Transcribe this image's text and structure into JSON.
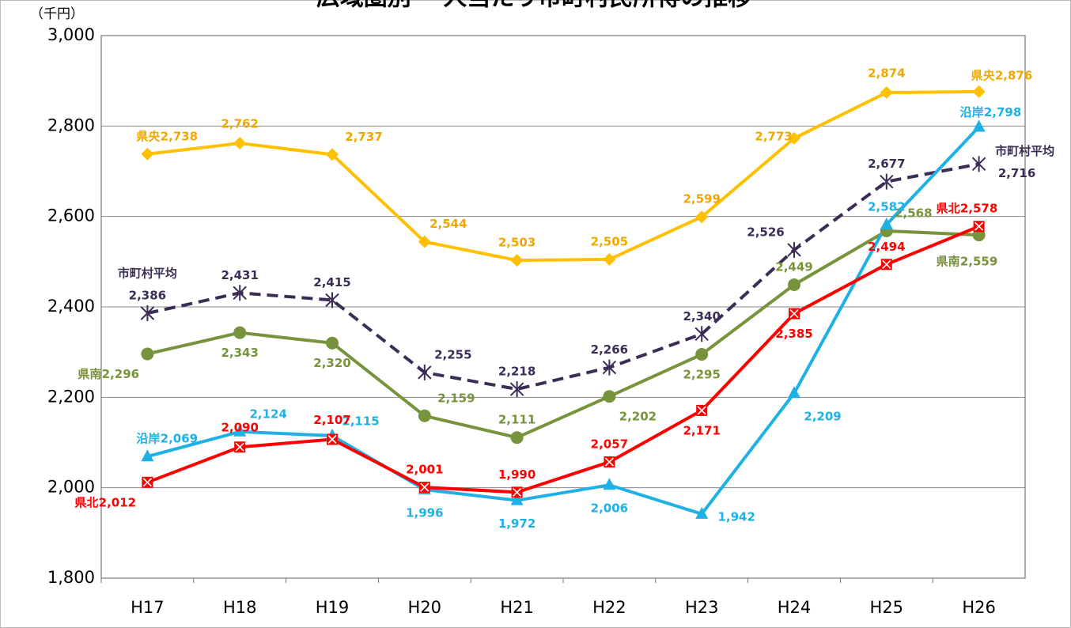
{
  "chart_data": {
    "type": "line",
    "title": "広域圏別 一人当たり市町村民所得の推移",
    "y_unit": "（千円）",
    "categories": [
      "H17",
      "H18",
      "H19",
      "H20",
      "H21",
      "H22",
      "H23",
      "H24",
      "H25",
      "H26"
    ],
    "ylim": [
      1800,
      3000
    ],
    "yticks": [
      {
        "value": 1800,
        "label": "1,800"
      },
      {
        "value": 2000,
        "label": "2,000"
      },
      {
        "value": 2200,
        "label": "2,200"
      },
      {
        "value": 2400,
        "label": "2,400"
      },
      {
        "value": 2600,
        "label": "2,600"
      },
      {
        "value": 2800,
        "label": "2,800"
      },
      {
        "value": 3000,
        "label": "3,000"
      }
    ],
    "grid": true,
    "series": [
      {
        "name": "県央",
        "color": "#ffc000",
        "marker": "diamond",
        "values": [
          2738,
          2762,
          2737,
          2544,
          2503,
          2505,
          2599,
          2773,
          2874,
          2876
        ],
        "value_labels": [
          "2,738",
          "2,762",
          "2,737",
          "2,544",
          "2,503",
          "2,505",
          "2,599",
          "2,773",
          "2,874",
          "2,876"
        ]
      },
      {
        "name": "市町村平均",
        "color": "#3b2d55",
        "marker": "star",
        "dashed": true,
        "values": [
          2386,
          2431,
          2415,
          2255,
          2218,
          2266,
          2340,
          2526,
          2677,
          2716
        ],
        "value_labels": [
          "2,386",
          "2,431",
          "2,415",
          "2,255",
          "2,218",
          "2,266",
          "2,340",
          "2,526",
          "2,677",
          "2,716"
        ]
      },
      {
        "name": "県南",
        "color": "#77933c",
        "marker": "circle",
        "values": [
          2296,
          2343,
          2320,
          2159,
          2111,
          2202,
          2295,
          2449,
          2568,
          2559
        ],
        "value_labels": [
          "2,296",
          "2,343",
          "2,320",
          "2,159",
          "2,111",
          "2,202",
          "2,295",
          "2,449",
          "2,568",
          "2,559"
        ]
      },
      {
        "name": "沿岸",
        "color": "#1fb1e6",
        "marker": "triangle",
        "values": [
          2069,
          2124,
          2115,
          1996,
          1972,
          2006,
          1942,
          2209,
          2582,
          2798
        ],
        "value_labels": [
          "2,069",
          "2,124",
          "2,115",
          "1,996",
          "1,972",
          "2,006",
          "1,942",
          "2,209",
          "2,582",
          "2,798"
        ]
      },
      {
        "name": "県北",
        "color": "#ff0000",
        "marker": "xsquare",
        "values": [
          2012,
          2090,
          2107,
          2001,
          1990,
          2057,
          2171,
          2385,
          2494,
          2578
        ],
        "value_labels": [
          "2,012",
          "2,090",
          "2,107",
          "2,001",
          "1,990",
          "2,057",
          "2,171",
          "2,385",
          "2,494",
          "2,578"
        ]
      }
    ]
  }
}
